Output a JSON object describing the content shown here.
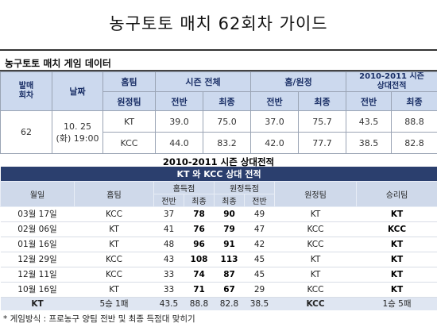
{
  "title": "농구토토 매치 62회차 가이드",
  "section1": {
    "title": "농구토토 매치 게임 데이터",
    "headers": {
      "round": "발매\n회차",
      "date": "날짜",
      "home_team": "홈팀",
      "away_team": "원정팀",
      "season_total": "시즌 전체",
      "home_away": "홈/원정",
      "h2h": "2010-2011 시즌\n상대전적",
      "first_half": "전반",
      "final": "최종"
    },
    "round": "62",
    "date": "10. 25\n(화) 19:00",
    "rows": [
      {
        "team": "KT",
        "season_first": "39.0",
        "season_final": "75.0",
        "ha_first": "37.0",
        "ha_final": "75.7",
        "h2h_first": "43.5",
        "h2h_final": "88.8"
      },
      {
        "team": "KCC",
        "season_first": "44.0",
        "season_final": "83.2",
        "ha_first": "42.0",
        "ha_final": "77.7",
        "h2h_first": "38.5",
        "h2h_final": "82.8"
      }
    ]
  },
  "section2": {
    "title": "2010-2011 시즌 상대전적",
    "banner": "KT 와 KCC 상대 전적",
    "headers": {
      "date": "월일",
      "home_team": "홈팀",
      "home_score": "홈득점",
      "away_score": "원정득점",
      "away_team": "원정팀",
      "winner": "승리팀",
      "first_half": "전반",
      "final": "최종"
    },
    "rows": [
      {
        "date": "03월 17일",
        "home": "KCC",
        "home_first": "37",
        "home_final": "78",
        "away_final": "90",
        "away_first": "49",
        "away": "KT",
        "winner": "KT"
      },
      {
        "date": "02월 06일",
        "home": "KT",
        "home_first": "41",
        "home_final": "76",
        "away_final": "79",
        "away_first": "47",
        "away": "KCC",
        "winner": "KCC"
      },
      {
        "date": "01월 16일",
        "home": "KT",
        "home_first": "48",
        "home_final": "96",
        "away_final": "91",
        "away_first": "42",
        "away": "KCC",
        "winner": "KT"
      },
      {
        "date": "12월 29일",
        "home": "KCC",
        "home_first": "43",
        "home_final": "108",
        "away_final": "113",
        "away_first": "45",
        "away": "KT",
        "winner": "KT"
      },
      {
        "date": "12월 11일",
        "home": "KCC",
        "home_first": "33",
        "home_final": "74",
        "away_final": "87",
        "away_first": "45",
        "away": "KT",
        "winner": "KT"
      },
      {
        "date": "10월 16일",
        "home": "KT",
        "home_first": "33",
        "home_final": "71",
        "away_final": "67",
        "away_first": "29",
        "away": "KCC",
        "winner": "KT"
      }
    ],
    "summary": {
      "team_a": "KT",
      "team_a_record": "5승 1패",
      "v1": "43.5",
      "v2": "88.8",
      "v3": "82.8",
      "v4": "38.5",
      "team_b": "KCC",
      "team_b_record": "1승 5패"
    }
  },
  "footer": "* 게임방식 : 프로농구 양팀 전반 및 최종 득점대 맞히기"
}
